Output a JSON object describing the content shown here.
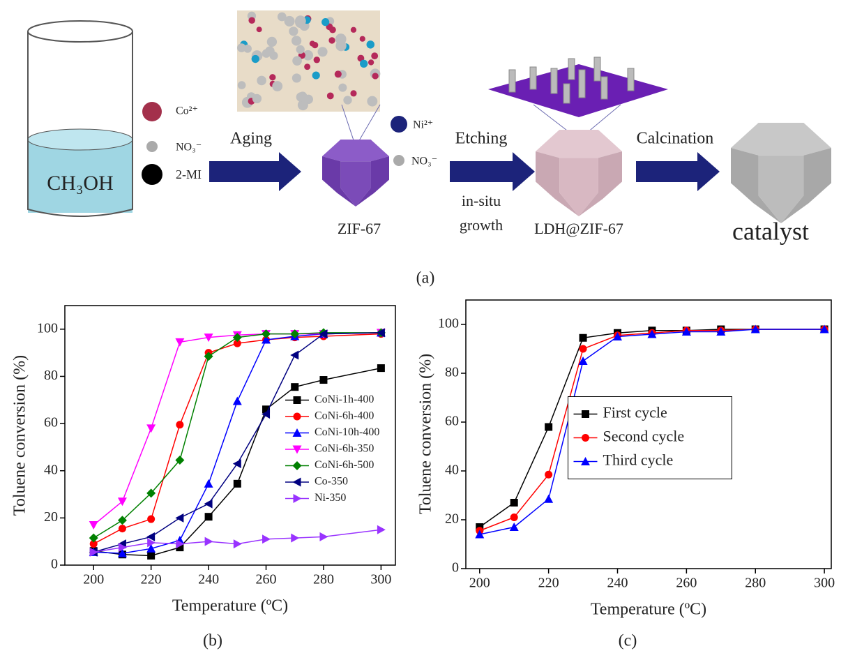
{
  "diagram": {
    "solvent": "CH₃OH",
    "ions_1": [
      "Co²⁺",
      "NO₃⁻",
      "2-MI"
    ],
    "step_1": "Aging",
    "product_1": "ZIF-67",
    "ions_2": [
      "Ni²⁺",
      "NO₃⁻"
    ],
    "step_2": "Etching",
    "step_2_note": [
      "in-situ",
      "growth"
    ],
    "product_2": "LDH@ZIF-67",
    "step_3": "Calcination",
    "product_3": "catalyst",
    "panel_label": "(a)"
  },
  "chart_data": [
    {
      "type": "line",
      "panel_label": "(b)",
      "x_label": "Temperature (ºC)",
      "y_label": "Toluene conversion (%)",
      "xlim": [
        190,
        305
      ],
      "ylim": [
        0,
        110
      ],
      "xticks": [
        200,
        220,
        240,
        260,
        280,
        300
      ],
      "yticks": [
        0,
        20,
        40,
        60,
        80,
        100
      ],
      "legend": "center right",
      "series": [
        {
          "name": "CoNi-1h-400",
          "color": "#000000",
          "marker": "square",
          "x": [
            200,
            210,
            220,
            230,
            240,
            250,
            260,
            270,
            280,
            300
          ],
          "values": [
            6,
            4.5,
            4,
            7.5,
            20.5,
            34.5,
            66,
            75.5,
            78.5,
            83.5
          ]
        },
        {
          "name": "CoNi-6h-400",
          "color": "#ff0000",
          "marker": "circle",
          "x": [
            200,
            210,
            220,
            230,
            240,
            250,
            260,
            270,
            280,
            300
          ],
          "values": [
            9,
            15.5,
            19.5,
            59.5,
            90,
            94,
            95.5,
            96.5,
            97,
            98
          ]
        },
        {
          "name": "CoNi-10h-400",
          "color": "#0000ff",
          "marker": "triangle-up",
          "x": [
            200,
            210,
            220,
            230,
            240,
            250,
            260,
            270,
            280,
            300
          ],
          "values": [
            5.5,
            5,
            7,
            10.5,
            34.5,
            69.5,
            95.5,
            97,
            98,
            98.5
          ]
        },
        {
          "name": "CoNi-6h-350",
          "color": "#ff00ff",
          "marker": "triangle-down",
          "x": [
            200,
            210,
            220,
            230,
            240,
            250,
            260,
            270,
            280,
            300
          ],
          "values": [
            17,
            27,
            58,
            94.5,
            96.5,
            97.5,
            98,
            98,
            98,
            98.5
          ]
        },
        {
          "name": "CoNi-6h-500",
          "color": "#008000",
          "marker": "diamond",
          "x": [
            200,
            210,
            220,
            230,
            240,
            250,
            260,
            270,
            280,
            300
          ],
          "values": [
            11.5,
            19,
            30.5,
            44.5,
            88.5,
            96.5,
            98,
            98,
            98.5,
            98.5
          ]
        },
        {
          "name": "Co-350",
          "color": "#000080",
          "marker": "triangle-left",
          "x": [
            200,
            210,
            220,
            230,
            240,
            250,
            260,
            270,
            280,
            300
          ],
          "values": [
            5.5,
            9,
            12,
            20,
            26,
            43,
            64,
            89,
            98,
            98.5
          ]
        },
        {
          "name": "Ni-350",
          "color": "#9933ff",
          "marker": "triangle-right",
          "x": [
            200,
            210,
            220,
            230,
            240,
            250,
            260,
            270,
            280,
            300
          ],
          "values": [
            5.5,
            7.5,
            9.5,
            9,
            10,
            9,
            11,
            11.5,
            12,
            15
          ]
        }
      ]
    },
    {
      "type": "line",
      "panel_label": "(c)",
      "x_label": "Temperature (ºC)",
      "y_label": "Toluene conversion (%)",
      "xlim": [
        196,
        302
      ],
      "ylim": [
        0,
        110
      ],
      "xticks": [
        200,
        220,
        240,
        260,
        280,
        300
      ],
      "yticks": [
        0,
        20,
        40,
        60,
        80,
        100
      ],
      "legend": "center",
      "legend_box": true,
      "series": [
        {
          "name": "First cycle",
          "color": "#000000",
          "marker": "square",
          "x": [
            200,
            210,
            220,
            230,
            240,
            250,
            260,
            270,
            280,
            300
          ],
          "values": [
            17,
            27,
            58,
            94.5,
            96.5,
            97.5,
            97.5,
            98,
            98,
            98
          ]
        },
        {
          "name": "Second cycle",
          "color": "#ff0000",
          "marker": "circle",
          "x": [
            200,
            210,
            220,
            230,
            240,
            250,
            260,
            270,
            280,
            300
          ],
          "values": [
            15.5,
            21,
            38.5,
            90,
            95.5,
            96.5,
            97.5,
            97.5,
            98,
            98
          ]
        },
        {
          "name": "Third cycle",
          "color": "#0000ff",
          "marker": "triangle-up",
          "x": [
            200,
            210,
            220,
            230,
            240,
            250,
            260,
            270,
            280,
            300
          ],
          "values": [
            14,
            17,
            28.5,
            85,
            95,
            96,
            97,
            97,
            98,
            98
          ]
        }
      ]
    }
  ]
}
